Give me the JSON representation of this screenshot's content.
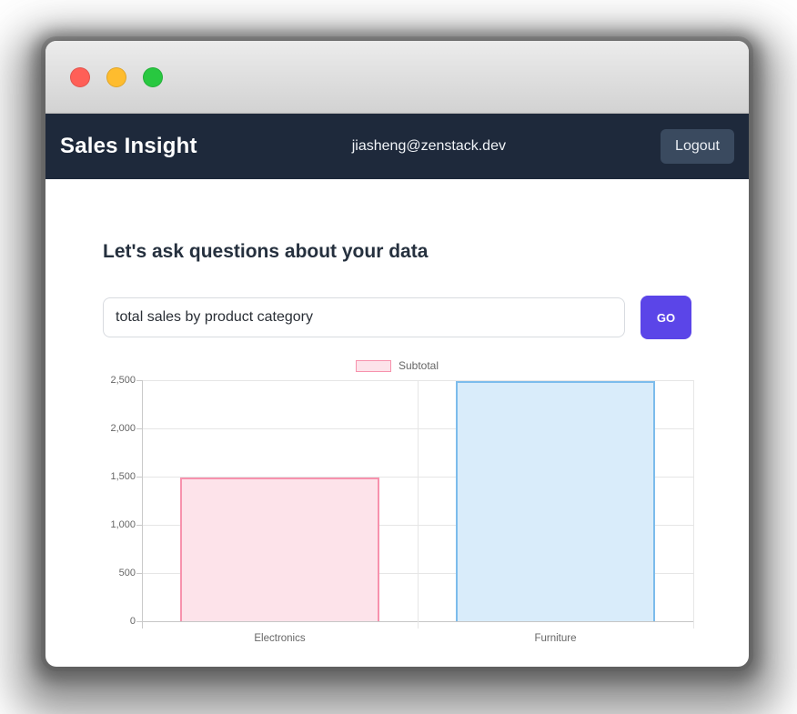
{
  "window": {
    "traffic_lights": {
      "close_color": "#ff5f57",
      "minimize_color": "#febc2e",
      "maximize_color": "#28c840"
    }
  },
  "navbar": {
    "bg_color": "#1e293b",
    "brand": "Sales Insight",
    "user_email": "jiasheng@zenstack.dev",
    "logout_label": "Logout"
  },
  "main": {
    "heading": "Let's ask questions about your data",
    "query_input_value": "total sales by product category",
    "go_label": "GO",
    "go_color": "#5b45e8"
  },
  "chart_data": {
    "type": "bar",
    "title": "",
    "categories": [
      "Electronics",
      "Furniture"
    ],
    "series": [
      {
        "name": "Subtotal",
        "values": [
          1490,
          2490
        ]
      }
    ],
    "bar_colors": [
      {
        "fill": "#fde3ea",
        "border": "#f792ad"
      },
      {
        "fill": "#d9ecfa",
        "border": "#7cbcec"
      }
    ],
    "legend": {
      "position": "top",
      "label": "Subtotal",
      "fill": "#fde3ea",
      "border": "#f792ad"
    },
    "xlabel": "",
    "ylabel": "",
    "ylim": [
      0,
      2500
    ],
    "yticks": [
      0,
      500,
      1000,
      1500,
      2000,
      2500
    ],
    "grid": true
  }
}
